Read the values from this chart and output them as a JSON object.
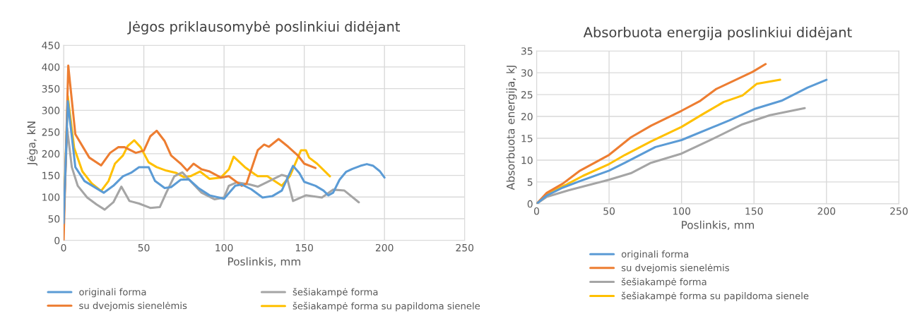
{
  "chart_data": [
    {
      "type": "line",
      "title": "Jėgos priklausomybė poslinkiui didėjant",
      "xlabel": "Poslinkis, mm",
      "ylabel": "Jėga, kN",
      "xlim": [
        0,
        250
      ],
      "xticks": [
        0,
        50,
        100,
        150,
        200,
        250
      ],
      "ylim": [
        0,
        450
      ],
      "yticks": [
        0,
        50,
        100,
        150,
        200,
        250,
        300,
        350,
        400,
        450
      ],
      "grid": true,
      "legend": "bottom",
      "line_style": "solid",
      "series": [
        {
          "name": "originali forma",
          "color": "#5b9bd5",
          "x": [
            0,
            2.6,
            7.3,
            13,
            25,
            31,
            37,
            42,
            47,
            53,
            57,
            63,
            67,
            73,
            78,
            84,
            91,
            100,
            107,
            111,
            117,
            124,
            130,
            136,
            143,
            147,
            150,
            157,
            162,
            165,
            168,
            172,
            176,
            180,
            185,
            189,
            193,
            197,
            200
          ],
          "values": [
            40,
            321,
            169,
            137,
            110,
            126,
            148,
            156,
            169,
            169,
            137,
            121,
            123,
            140,
            141,
            121,
            104,
            96,
            126,
            129,
            118,
            99,
            102,
            115,
            172,
            155,
            135,
            126,
            115,
            104,
            110,
            140,
            158,
            165,
            172,
            176,
            172,
            160,
            145
          ]
        },
        {
          "name": "su dvejomis sienelėmis",
          "color": "#ed7d31",
          "x": [
            0,
            2.9,
            7.3,
            16,
            23.4,
            29,
            34,
            38,
            45,
            50,
            54,
            58,
            63,
            67,
            73,
            77,
            81,
            86,
            91,
            98,
            103,
            111,
            114,
            119,
            121,
            125,
            128,
            134,
            140,
            146,
            150,
            157
          ],
          "values": [
            0,
            403,
            245,
            191,
            173,
            202,
            215,
            215,
            202,
            207,
            240,
            253,
            229,
            196,
            177,
            161,
            177,
            164,
            159,
            145,
            148,
            126,
            131,
            186,
            208,
            221,
            216,
            234,
            216,
            196,
            177,
            167
          ]
        },
        {
          "name": "šešiakampė forma",
          "color": "#a5a5a5",
          "x": [
            0,
            2.2,
            5.1,
            8.8,
            14.7,
            20.5,
            25.6,
            31,
            36,
            41,
            47,
            54,
            60,
            64,
            69,
            74,
            79,
            86,
            94,
            100,
            103,
            108,
            116,
            121,
            136,
            139,
            143,
            151,
            161,
            168,
            175,
            184
          ],
          "values": [
            45,
            259,
            169,
            126,
            99,
            83,
            71,
            88,
            124,
            91,
            85,
            75,
            77,
            110,
            148,
            157,
            137,
            110,
            95,
            99,
            126,
            134,
            129,
            124,
            151,
            148,
            91,
            104,
            99,
            117,
            115,
            88
          ]
        },
        {
          "name": "šešiakampė forma su papildoma sienele",
          "color": "#ffc000",
          "x": [
            0,
            2.6,
            6.6,
            11.7,
            17.6,
            23.4,
            28,
            32,
            37,
            40,
            44,
            48,
            53,
            58,
            64,
            70,
            75,
            79,
            85,
            91,
            98,
            103,
            106,
            113,
            119,
            121,
            127,
            136,
            141,
            148,
            151,
            153,
            158,
            166
          ],
          "values": [
            48,
            333,
            213,
            159,
            131,
            114,
            137,
            177,
            196,
            218,
            231,
            215,
            180,
            169,
            161,
            156,
            146,
            148,
            159,
            142,
            145,
            164,
            193,
            169,
            153,
            148,
            148,
            126,
            148,
            208,
            208,
            191,
            177,
            148
          ]
        }
      ]
    },
    {
      "type": "line",
      "title": "Absorbuota energija poslinkiui didėjant",
      "xlabel": "Poslinkis, mm",
      "ylabel": "Absorbuota energija, kJ",
      "xlim": [
        0,
        250
      ],
      "xticks": [
        0,
        50,
        100,
        150,
        200,
        250
      ],
      "ylim": [
        0,
        35
      ],
      "yticks": [
        0,
        5,
        10,
        15,
        20,
        25,
        30,
        35
      ],
      "grid": true,
      "legend": "bottom",
      "line_style": "solid",
      "series": [
        {
          "name": "originali forma",
          "color": "#5b9bd5",
          "x": [
            0,
            7,
            18,
            30,
            50,
            61,
            82,
            100,
            122,
            133,
            151,
            169,
            187,
            200
          ],
          "values": [
            0,
            1.9,
            3.7,
            5.2,
            7.6,
            9.4,
            13,
            14.6,
            17.6,
            19.1,
            21.8,
            23.6,
            26.6,
            28.4
          ]
        },
        {
          "name": "su dvejomis sienelėmis",
          "color": "#ed7d31",
          "x": [
            0,
            7,
            18,
            30,
            50,
            65,
            79,
            100,
            113,
            124,
            149,
            158
          ],
          "values": [
            0,
            2.5,
            4.6,
            7.6,
            11.2,
            15.2,
            17.9,
            21.3,
            23.6,
            26.3,
            30.2,
            32
          ]
        },
        {
          "name": "šešiakampė forma",
          "color": "#a5a5a5",
          "x": [
            0,
            7,
            22,
            36,
            50,
            65,
            79,
            100,
            120,
            142,
            161,
            185
          ],
          "values": [
            0,
            1.6,
            3.1,
            4.3,
            5.5,
            7,
            9.4,
            11.5,
            14.6,
            18.2,
            20.3,
            21.9
          ]
        },
        {
          "name": "šešiakampė forma su papildoma sienele",
          "color": "#ffc000",
          "x": [
            0,
            7,
            20,
            32,
            50,
            61,
            79,
            100,
            115,
            129,
            142,
            152,
            168
          ],
          "values": [
            0,
            2.2,
            4.3,
            6.4,
            9.1,
            11.2,
            14.3,
            17.6,
            20.6,
            23.3,
            24.8,
            27.5,
            28.4
          ]
        }
      ]
    }
  ]
}
